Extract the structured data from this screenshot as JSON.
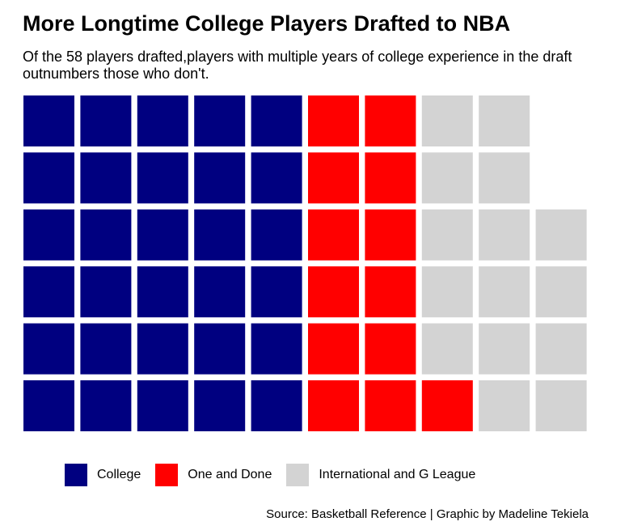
{
  "chart_data": {
    "type": "waffle",
    "title": "More Longtime College Players Drafted to NBA",
    "subtitle": "Of the 58 players drafted,players with multiple years of college experience in the draft outnumbers those who don't.",
    "caption": "Source: Basketball Reference | Graphic by Madeline Tekiela",
    "rows": 6,
    "fill_order": "column-wise, bottom to top",
    "categories": [
      "College",
      "One and Done",
      "International and G League"
    ],
    "values": [
      30,
      13,
      15
    ],
    "colors": [
      "#000080",
      "#ff0000",
      "#d3d3d3"
    ],
    "legend_position": "bottom"
  }
}
